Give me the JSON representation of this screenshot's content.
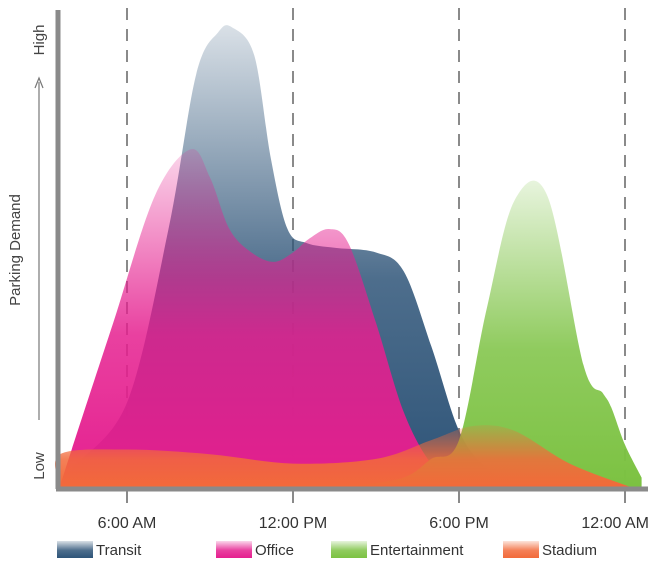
{
  "chart_data": {
    "type": "area",
    "ylabel": "Parking Demand",
    "y_high_label": "High",
    "y_low_label": "Low",
    "x_tick_labels": [
      "6:00 AM",
      "12:00 PM",
      "6:00 PM",
      "12:00 AM"
    ],
    "x_tick_hours": [
      6,
      12,
      18,
      24
    ],
    "xlim": [
      1,
      25
    ],
    "ylim": [
      0,
      100
    ],
    "grid": "vertical dashed at ticks",
    "legend_position": "bottom",
    "series": [
      {
        "name": "Transit",
        "color": "#2e5478",
        "x": [
          2.5,
          4,
          6,
          7.5,
          8.5,
          9.3,
          9.8,
          10.6,
          11.2,
          11.8,
          12.5,
          13.5,
          15,
          16,
          17,
          18,
          19,
          20,
          21
        ],
        "y": [
          0,
          4,
          18,
          55,
          88,
          97,
          98,
          92,
          70,
          55,
          52,
          51,
          50,
          46,
          30,
          12,
          4,
          1,
          0
        ]
      },
      {
        "name": "Office",
        "color": "#e51f8f",
        "x": [
          2.5,
          4,
          5.5,
          7,
          8.3,
          9,
          9.7,
          10.5,
          11.3,
          12,
          12.6,
          13.3,
          14,
          15,
          16,
          17,
          18,
          19
        ],
        "y": [
          0,
          8,
          35,
          62,
          72,
          66,
          55,
          50,
          48,
          50,
          53,
          55,
          52,
          35,
          16,
          5,
          1,
          0
        ]
      },
      {
        "name": "Entertainment",
        "color": "#7cc242",
        "x": [
          14,
          16,
          17,
          18,
          19,
          20,
          21.2,
          22.5,
          23.2,
          23.5,
          24,
          24.6
        ],
        "y": [
          0,
          2,
          6,
          10,
          38,
          61,
          62,
          26,
          20,
          17,
          9,
          2
        ]
      },
      {
        "name": "Stadium",
        "color": "#f26a3a",
        "x": [
          1.5,
          3,
          6,
          9,
          12,
          15,
          17,
          18.5,
          20,
          22,
          24.2
        ],
        "y": [
          0,
          7,
          8,
          7,
          5,
          6,
          10,
          13,
          12,
          5,
          0
        ]
      }
    ]
  }
}
